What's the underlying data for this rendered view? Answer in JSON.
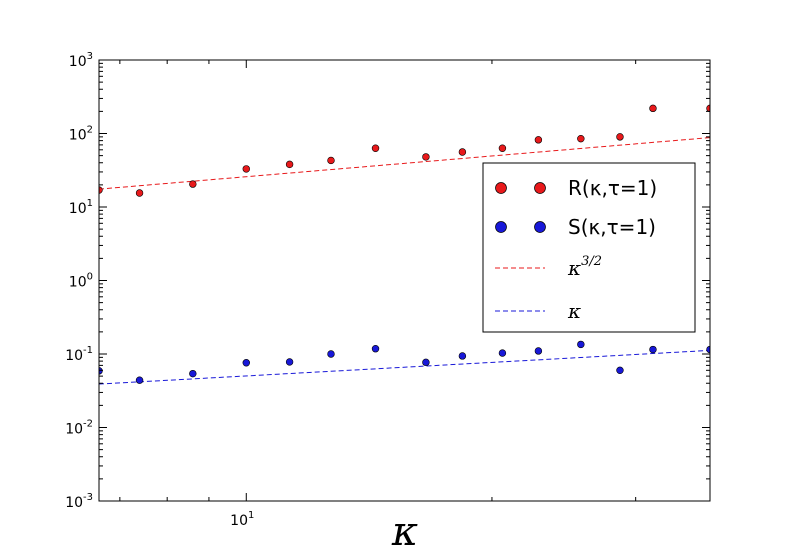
{
  "chart_data": {
    "type": "scatter",
    "xscale": "log",
    "yscale": "log",
    "xlim": [
      6.6,
      37
    ],
    "ylim": [
      0.001,
      1000
    ],
    "xlabel": "κ",
    "x_ticks": [
      {
        "value": 10,
        "label": "10",
        "exp": "1"
      }
    ],
    "y_ticks": [
      {
        "value": 0.001,
        "label": "10",
        "exp": "-3"
      },
      {
        "value": 0.01,
        "label": "10",
        "exp": "-2"
      },
      {
        "value": 0.1,
        "label": "10",
        "exp": "-1"
      },
      {
        "value": 1,
        "label": "10",
        "exp": "0"
      },
      {
        "value": 10,
        "label": "10",
        "exp": "1"
      },
      {
        "value": 100,
        "label": "10",
        "exp": "2"
      },
      {
        "value": 1000,
        "label": "10",
        "exp": "3"
      }
    ],
    "series": [
      {
        "name": "R(κ,τ=1)",
        "kind": "points",
        "color": "#e8191b",
        "x": [
          6.6,
          7.4,
          8.6,
          10.0,
          11.3,
          12.7,
          14.4,
          16.6,
          18.4,
          20.6,
          22.8,
          25.7,
          28.7,
          31.5,
          37.0
        ],
        "y": [
          17,
          15.5,
          20.5,
          33,
          38,
          43,
          63,
          48,
          56,
          63,
          82,
          85,
          90,
          220,
          220
        ]
      },
      {
        "name": "S(κ,τ=1)",
        "kind": "points",
        "color": "#1818d8",
        "x": [
          6.6,
          7.4,
          8.6,
          10.0,
          11.3,
          12.7,
          14.4,
          16.6,
          18.4,
          20.6,
          22.8,
          25.7,
          28.7,
          31.5,
          37.0
        ],
        "y": [
          0.059,
          0.044,
          0.054,
          0.076,
          0.078,
          0.1,
          0.118,
          0.077,
          0.094,
          0.103,
          0.11,
          0.135,
          0.06,
          0.115,
          0.115
        ]
      },
      {
        "name": "κ^{3/2}",
        "kind": "dashed-line",
        "color": "#e8191b",
        "x": [
          6.6,
          37
        ],
        "y": [
          17.5,
          88
        ]
      },
      {
        "name": "κ",
        "kind": "dashed-line",
        "color": "#1818d8",
        "x": [
          6.6,
          37
        ],
        "y": [
          0.039,
          0.112
        ]
      }
    ],
    "legend": {
      "placement": "right",
      "entries": [
        {
          "label": "R(κ,τ=1)",
          "style": "math-sans",
          "color": "#e8191b",
          "marker": "dots"
        },
        {
          "label": "S(κ,τ=1)",
          "style": "math-sans",
          "color": "#1818d8",
          "marker": "dots"
        },
        {
          "label": "κ",
          "sup": "3/2",
          "style": "math-italic",
          "color": "#e8191b",
          "marker": "dash"
        },
        {
          "label": "κ",
          "sup": "",
          "style": "math-italic",
          "color": "#1818d8",
          "marker": "dash"
        }
      ]
    }
  }
}
